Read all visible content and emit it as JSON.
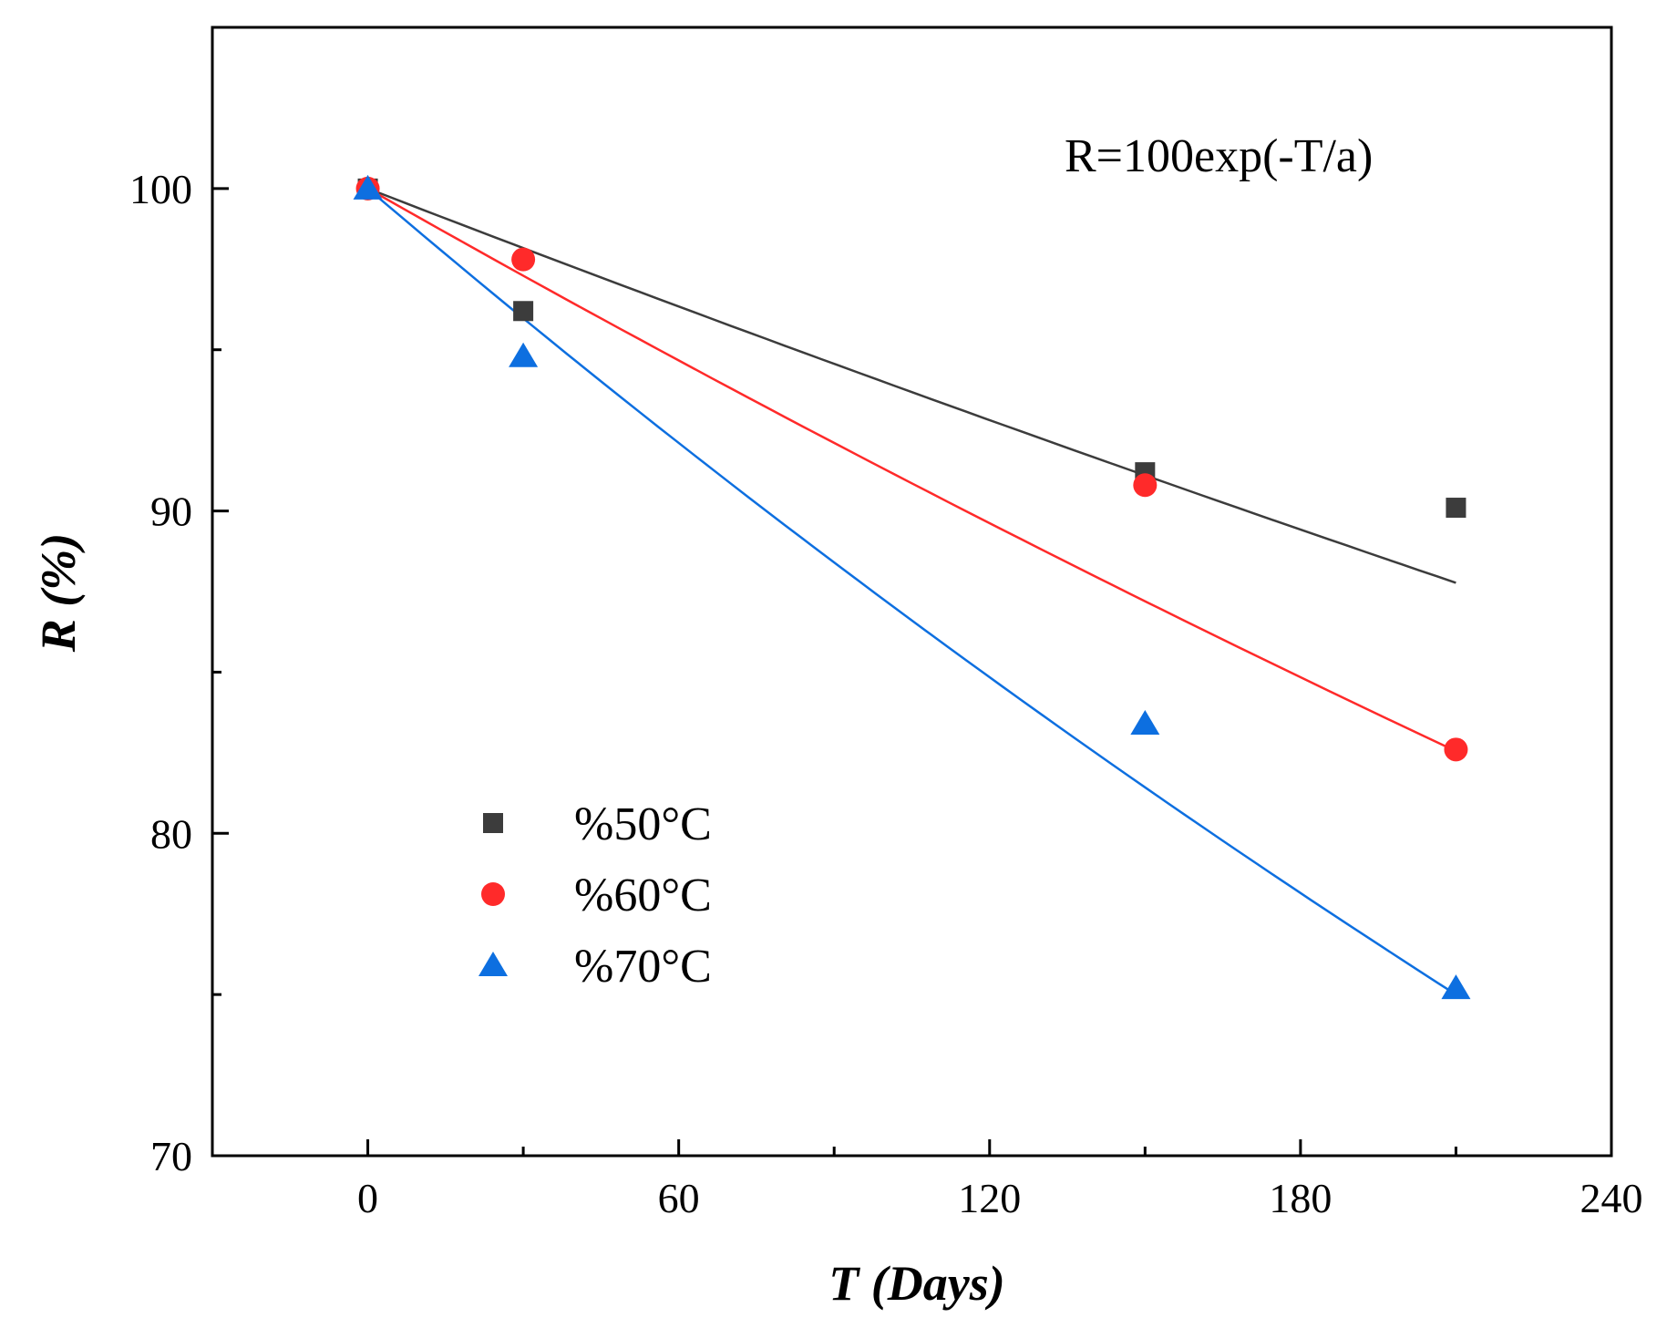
{
  "chart_data": {
    "type": "scatter",
    "title": "",
    "xlabel": "T (Days)",
    "ylabel": "R (%)",
    "xlim": [
      -30,
      240
    ],
    "ylim": [
      70,
      105
    ],
    "x_ticks": [
      0,
      60,
      120,
      180,
      240
    ],
    "x_minor_ticks": [
      30,
      90,
      150,
      210
    ],
    "y_ticks": [
      70,
      80,
      90,
      100
    ],
    "y_minor_ticks": [
      75,
      85,
      95
    ],
    "x_tick_labels": [
      "0",
      "60",
      "120",
      "180",
      "240"
    ],
    "y_tick_labels": [
      "70",
      "80",
      "90",
      "100"
    ],
    "annotation": "R=100exp(-T/a)",
    "grid": false,
    "legend_position": "bottom-left",
    "series": [
      {
        "name": "%50°C",
        "marker": "square",
        "color": "#3c3c3c",
        "x": [
          0,
          30,
          150,
          210
        ],
        "y": [
          100.0,
          96.2,
          91.2,
          90.1
        ],
        "fit": {
          "x": [
            0,
            210
          ],
          "a": 1610
        }
      },
      {
        "name": "%60°C",
        "marker": "circle",
        "color": "#ff2a2a",
        "x": [
          0,
          30,
          150,
          210
        ],
        "y": [
          100.0,
          97.8,
          90.8,
          82.6
        ],
        "fit": {
          "x": [
            0,
            210
          ],
          "a": 1095
        }
      },
      {
        "name": "%70°C",
        "marker": "triangle",
        "color": "#0d6fe0",
        "x": [
          0,
          30,
          150,
          210
        ],
        "y": [
          100.0,
          94.8,
          83.4,
          75.2
        ],
        "fit": {
          "x": [
            0,
            210
          ],
          "a": 730
        }
      }
    ]
  }
}
